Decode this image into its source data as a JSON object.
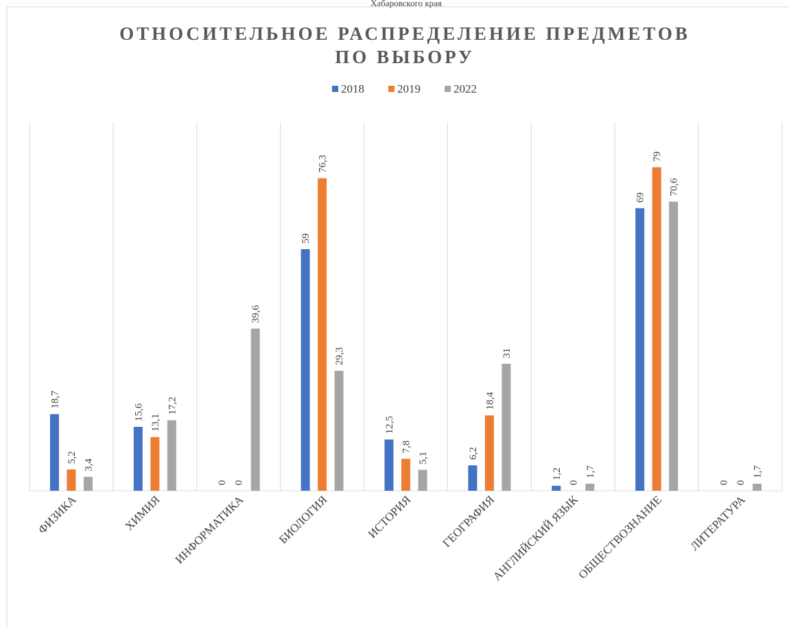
{
  "caption": "Хабаровского края",
  "chart_data": {
    "type": "bar",
    "title": [
      "ОТНОСИТЕЛЬНОЕ РАСПРЕДЕЛЕНИЕ ПРЕДМЕТОВ",
      "ПО ВЫБОРУ"
    ],
    "categories": [
      "ФИЗИКА",
      "ХИМИЯ",
      "ИНФОРМАТИКА",
      "БИОЛОГИЯ",
      "ИСТОРИЯ",
      "ГЕОГРАФИЯ",
      "АНГЛИЙСКИЙ ЯЗЫК",
      "ОБЩЕСТВОЗНАНИЕ",
      "ЛИТЕРАТУРА"
    ],
    "series": [
      {
        "name": "2018",
        "color": "#4472c4",
        "values": [
          18.7,
          15.6,
          0,
          59,
          12.5,
          6.2,
          1.2,
          69,
          0
        ],
        "value_labels": [
          "18,7",
          "15,6",
          "0",
          "59",
          "12,5",
          "6,2",
          "1,2",
          "69",
          "0"
        ]
      },
      {
        "name": "2019",
        "color": "#ed7d31",
        "values": [
          5.2,
          13.1,
          0,
          76.3,
          7.8,
          18.4,
          0,
          79,
          0
        ],
        "value_labels": [
          "5,2",
          "13,1",
          "0",
          "76,3",
          "7,8",
          "18,4",
          "0",
          "79",
          "0"
        ]
      },
      {
        "name": "2022",
        "color": "#a5a5a5",
        "values": [
          3.4,
          17.2,
          39.6,
          29.3,
          5.1,
          31,
          1.7,
          70.6,
          1.7
        ],
        "value_labels": [
          "3,4",
          "17,2",
          "39,6",
          "29,3",
          "5,1",
          "31",
          "1,7",
          "70,6",
          "1,7"
        ]
      }
    ],
    "ylim": [
      0,
      90
    ],
    "legend": "top"
  }
}
